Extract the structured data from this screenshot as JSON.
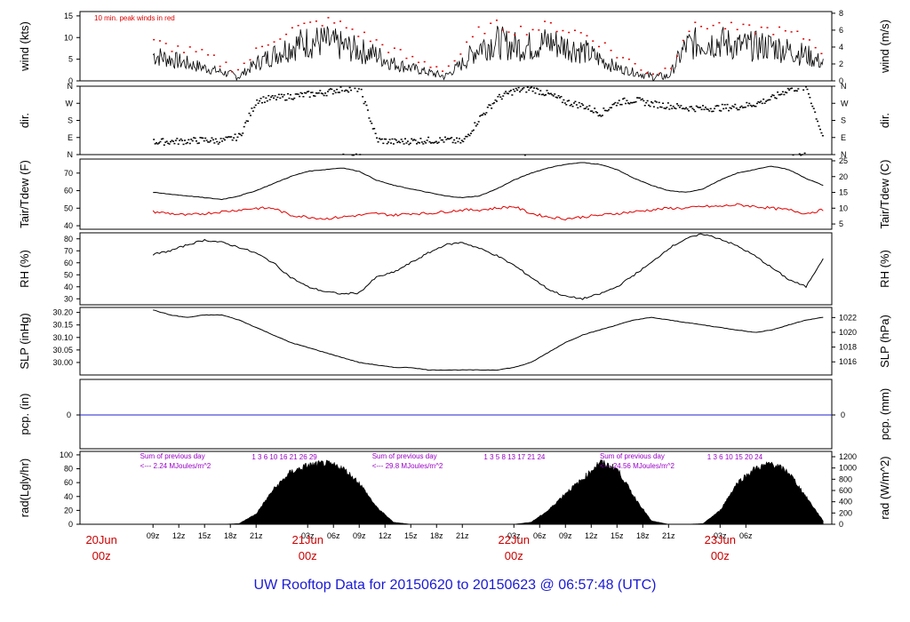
{
  "title": "UW Rooftop Data for 20150620  to  20150623 @ 06:57:48  (UTC)",
  "colors": {
    "title": "#1a1ad6",
    "day_marker": "#cc0000",
    "annotation": "#9a00c8",
    "wind_peak": "#e00000",
    "pcp_line": "#2222cc"
  },
  "chart_data": [
    {
      "type": "line",
      "panel": "wind",
      "ylabel": "wind (kts)",
      "ylabel_right": "wind (m/s)",
      "ylim": [
        0,
        16
      ],
      "yticks": [
        0,
        5,
        10,
        15
      ],
      "yticks_right": [
        0,
        2,
        4,
        6,
        8
      ],
      "ylim_right": [
        0,
        8.2
      ],
      "annotation": "10 min. peak winds in red",
      "x_hours": [
        0,
        2,
        4,
        6,
        8,
        10,
        12,
        14,
        16,
        18,
        20,
        22,
        24,
        26,
        28,
        30,
        32,
        34,
        36,
        38,
        40,
        42,
        44,
        46,
        48,
        50,
        52,
        54,
        56,
        58,
        60,
        62,
        64,
        66,
        68,
        70,
        72,
        74,
        76,
        78
      ],
      "series": [
        {
          "values": [
            6,
            5,
            4,
            3,
            2,
            1,
            4,
            6,
            8,
            9,
            9,
            8,
            7,
            6,
            4,
            3,
            2,
            1,
            4,
            8,
            9,
            8,
            8,
            9,
            8,
            7,
            5,
            3,
            2,
            1,
            1,
            8,
            9,
            9,
            8,
            8,
            8,
            7,
            6,
            4
          ]
        },
        {
          "values": [
            9,
            8,
            7,
            6,
            4,
            3,
            7,
            10,
            12,
            13,
            14,
            13,
            11,
            9,
            7,
            5,
            4,
            3,
            7,
            12,
            13,
            12,
            12,
            13,
            12,
            11,
            9,
            6,
            4,
            2,
            3,
            12,
            13,
            13,
            12,
            12,
            12,
            11,
            10,
            7
          ]
        }
      ]
    },
    {
      "type": "scatter",
      "panel": "dir",
      "ylabel": "dir.",
      "ylabel_right": "dir.",
      "ytick_labels": [
        "N",
        "E",
        "S",
        "W",
        "N"
      ],
      "ylim": [
        0,
        360
      ],
      "x_hours": [
        0,
        2,
        4,
        6,
        8,
        10,
        12,
        14,
        16,
        18,
        20,
        22,
        24,
        26,
        28,
        30,
        32,
        34,
        36,
        38,
        40,
        42,
        44,
        46,
        48,
        50,
        52,
        54,
        56,
        58,
        60,
        62,
        64,
        66,
        68,
        70,
        72,
        74,
        76,
        78
      ],
      "values": [
        70,
        72,
        75,
        80,
        75,
        100,
        290,
        300,
        310,
        320,
        330,
        350,
        350,
        80,
        70,
        75,
        78,
        80,
        70,
        200,
        300,
        340,
        350,
        320,
        280,
        260,
        220,
        280,
        290,
        270,
        260,
        250,
        245,
        250,
        255,
        270,
        300,
        350,
        355,
        80
      ]
    },
    {
      "type": "line",
      "panel": "temp",
      "ylabel": "Tair/Tdew (F)",
      "ylabel_right": "Tair/Tdew (C)",
      "ylim": [
        38,
        78
      ],
      "yticks": [
        40,
        50,
        60,
        70
      ],
      "yticks_right": [
        5,
        10,
        15,
        20,
        25
      ],
      "x_hours": [
        0,
        2,
        4,
        6,
        8,
        10,
        12,
        14,
        16,
        18,
        20,
        22,
        24,
        26,
        28,
        30,
        32,
        34,
        36,
        38,
        40,
        42,
        44,
        46,
        48,
        50,
        52,
        54,
        56,
        58,
        60,
        62,
        64,
        66,
        68,
        70,
        72,
        74,
        76,
        78
      ],
      "series": [
        {
          "name": "Tair",
          "values": [
            59,
            58,
            57,
            56,
            55,
            57,
            60,
            64,
            68,
            71,
            72,
            73,
            71,
            66,
            63,
            61,
            59,
            57,
            56,
            57,
            61,
            66,
            70,
            73,
            75,
            76,
            75,
            72,
            67,
            63,
            60,
            59,
            61,
            66,
            70,
            72,
            74,
            72,
            67,
            63
          ]
        },
        {
          "name": "Tdew",
          "values": [
            48,
            47,
            46,
            47,
            48,
            49,
            50,
            50,
            46,
            45,
            44,
            45,
            46,
            47,
            46,
            47,
            47,
            48,
            49,
            49,
            50,
            51,
            47,
            45,
            44,
            45,
            46,
            47,
            48,
            49,
            50,
            50,
            51,
            51,
            52,
            51,
            50,
            49,
            47,
            49
          ]
        }
      ]
    },
    {
      "type": "line",
      "panel": "rh",
      "ylabel": "RH (%)",
      "ylabel_right": "RH (%)",
      "ylim": [
        25,
        85
      ],
      "yticks": [
        30,
        40,
        50,
        60,
        70,
        80
      ],
      "x_hours": [
        0,
        2,
        4,
        6,
        8,
        10,
        12,
        14,
        16,
        18,
        20,
        22,
        24,
        26,
        28,
        30,
        32,
        34,
        36,
        38,
        40,
        42,
        44,
        46,
        48,
        50,
        52,
        54,
        56,
        58,
        60,
        62,
        64,
        66,
        68,
        70,
        72,
        74,
        76,
        78
      ],
      "values": [
        67,
        70,
        75,
        79,
        77,
        73,
        68,
        60,
        48,
        40,
        36,
        34,
        35,
        48,
        52,
        60,
        68,
        75,
        77,
        72,
        66,
        58,
        48,
        38,
        32,
        30,
        34,
        40,
        50,
        60,
        72,
        80,
        84,
        80,
        74,
        66,
        56,
        46,
        40,
        64
      ]
    },
    {
      "type": "line",
      "panel": "slp",
      "ylabel": "SLP (inHg)",
      "ylabel_right": "SLP (hPa)",
      "ylim": [
        29.95,
        30.22
      ],
      "yticks": [
        30.0,
        30.05,
        30.1,
        30.15,
        30.2
      ],
      "ytick_labels": [
        "30.00",
        "30.05",
        "30.10",
        "30.15",
        "30.20"
      ],
      "yticks_right": [
        1016,
        1018,
        1020,
        1022
      ],
      "x_hours": [
        0,
        2,
        4,
        6,
        8,
        10,
        12,
        14,
        16,
        18,
        20,
        22,
        24,
        26,
        28,
        30,
        32,
        34,
        36,
        38,
        40,
        42,
        44,
        46,
        48,
        50,
        52,
        54,
        56,
        58,
        60,
        62,
        64,
        66,
        68,
        70,
        72,
        74,
        76,
        78
      ],
      "values": [
        30.21,
        30.19,
        30.18,
        30.19,
        30.19,
        30.17,
        30.14,
        30.11,
        30.08,
        30.06,
        30.04,
        30.02,
        30.0,
        29.99,
        29.98,
        29.98,
        29.97,
        29.97,
        29.97,
        29.97,
        29.97,
        29.98,
        30.0,
        30.04,
        30.08,
        30.11,
        30.13,
        30.15,
        30.17,
        30.18,
        30.17,
        30.16,
        30.15,
        30.14,
        30.13,
        30.12,
        30.13,
        30.15,
        30.17,
        30.18
      ]
    },
    {
      "type": "line",
      "panel": "pcp",
      "ylabel": "pcp. (in)",
      "ylabel_right": "pcp. (mm)",
      "yticks": [
        0
      ],
      "yticks_right": [
        0
      ],
      "x_hours": [
        0,
        78
      ],
      "values": [
        0,
        0
      ]
    },
    {
      "type": "area",
      "panel": "rad",
      "ylabel": "rad(Lgly/hr)",
      "ylabel_right": "rad (W/m^2)",
      "ylim": [
        0,
        105
      ],
      "yticks": [
        0,
        20,
        40,
        60,
        80,
        100
      ],
      "yticks_right": [
        0,
        200,
        400,
        600,
        800,
        1000,
        1200
      ],
      "x_hours": [
        0,
        2,
        4,
        6,
        8,
        10,
        12,
        14,
        16,
        18,
        20,
        22,
        24,
        26,
        28,
        30,
        32,
        34,
        36,
        38,
        40,
        42,
        44,
        46,
        48,
        50,
        52,
        54,
        56,
        58,
        60,
        62,
        64,
        66,
        68,
        70,
        72,
        74,
        76,
        78
      ],
      "values": [
        0,
        0,
        0,
        0,
        0,
        1,
        15,
        50,
        75,
        85,
        88,
        82,
        60,
        25,
        3,
        0,
        0,
        0,
        0,
        0,
        0,
        0,
        3,
        20,
        45,
        65,
        90,
        80,
        40,
        5,
        0,
        0,
        1,
        20,
        60,
        80,
        88,
        75,
        40,
        5
      ],
      "annotations": [
        {
          "text": "Sum of previous day",
          "hour": -1.5,
          "row": 1
        },
        {
          "text": "<--- 2.24 MJoules/m^2",
          "hour": -1.5,
          "row": 2
        },
        {
          "text": "Sum of previous day",
          "hour": 25.5,
          "row": 1
        },
        {
          "text": "<--- 29.8 MJoules/m^2",
          "hour": 25.5,
          "row": 2
        },
        {
          "text": "Sum of previous day",
          "hour": 52.0,
          "row": 1
        },
        {
          "text": "<--- 24.56 MJoules/m^2",
          "hour": 52.0,
          "row": 2
        }
      ],
      "sun_ticks": [
        {
          "hour": 11.5,
          "labels": "1   3   6   10   16   21   26   29"
        },
        {
          "hour": 38.5,
          "labels": "1   3  5  8   13   17   21   24"
        },
        {
          "hour": 64.5,
          "labels": "1   3   6   10   15   20   24"
        }
      ]
    }
  ],
  "x_axis": {
    "hour_ticks": [
      "09z",
      "12z",
      "15z",
      "18z",
      "21z",
      "03z",
      "06z",
      "09z",
      "12z",
      "15z",
      "18z",
      "21z",
      "03z",
      "06z",
      "09z",
      "12z",
      "15z",
      "18z",
      "21z",
      "03z",
      "06z"
    ],
    "day_markers": [
      {
        "date": "20Jun",
        "time": "00z",
        "hour": 0
      },
      {
        "date": "21Jun",
        "time": "00z",
        "hour": 24
      },
      {
        "date": "22Jun",
        "time": "00z",
        "hour": 48
      },
      {
        "date": "23Jun",
        "time": "00z",
        "hour": 72
      }
    ]
  }
}
